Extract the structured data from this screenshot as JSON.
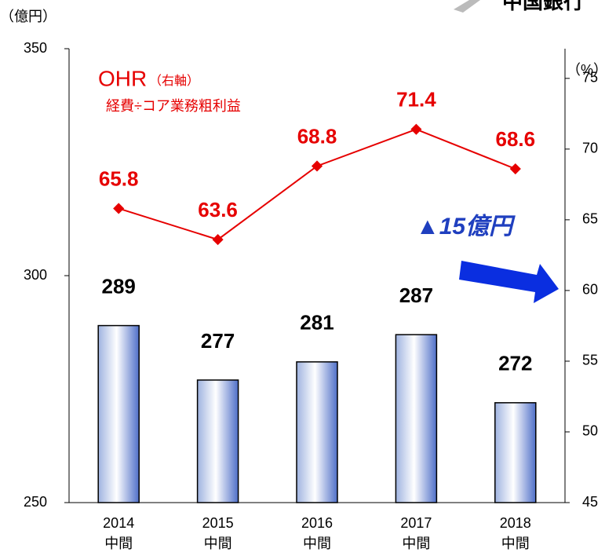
{
  "logo": "中国銀行",
  "chart_data": {
    "type": "bar",
    "y_label": "（億円）",
    "y2_label": "（%）",
    "annotations": {
      "ohr": "OHR",
      "ohr_note": "（右軸）",
      "formula": "経費÷コア業務粗利益",
      "change": "▲15億円"
    },
    "categories": [
      [
        "2014",
        "中間"
      ],
      [
        "2015",
        "中間"
      ],
      [
        "2016",
        "中間"
      ],
      [
        "2017",
        "中間"
      ],
      [
        "2018",
        "中間"
      ]
    ],
    "series": [
      {
        "color": "#1f3fbf",
        "values": [
          289,
          277,
          281,
          287,
          272
        ]
      },
      {
        "type": "line",
        "axis": "y2",
        "color": "#e60000",
        "values": [
          65.8,
          63.6,
          68.8,
          71.4,
          68.6
        ]
      }
    ],
    "ylim": [
      250,
      350
    ],
    "yticks": [
      250,
      300,
      350
    ],
    "y2lim": [
      45,
      77.1
    ],
    "y2ticks": [
      45,
      50,
      55,
      60,
      65,
      70,
      75
    ]
  }
}
